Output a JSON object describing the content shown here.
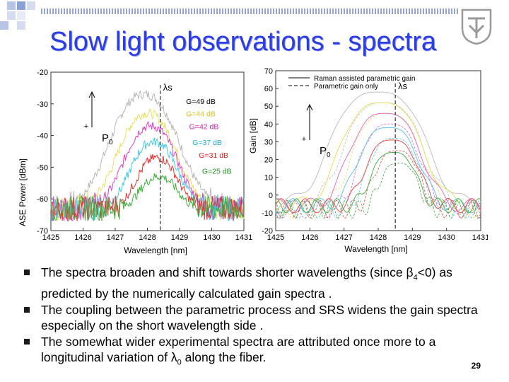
{
  "slide": {
    "title": "Slow light observations - spectra",
    "page_number": "29",
    "bullets": [
      {
        "pre": "The spectra broaden and shift towards shorter wavelengths (since β",
        "sub": "4",
        "post": "<0) as predicted by the numerically calculated gain spectra ."
      },
      {
        "pre": "The coupling between the parametric process and SRS widens the gain spectra especially on the short wavelength side .",
        "sub": "",
        "post": ""
      },
      {
        "pre": " The somewhat wider experimental spectra are attributed once more to a longitudinal variation of λ",
        "sub": "0",
        "post": " along the fiber."
      }
    ]
  },
  "chart_data": [
    {
      "type": "line",
      "xlabel": "Wavelength [nm]",
      "ylabel": "ASE Power [dBm]",
      "xticks": [
        "1425",
        "1426",
        "1427",
        "1428",
        "1429",
        "1430",
        "1431"
      ],
      "yticks": [
        "-20",
        "-30",
        "-40",
        "-50",
        "-60",
        "-70"
      ],
      "xlim": [
        1425,
        1431
      ],
      "ylim": [
        -70,
        -20
      ],
      "marker_label": "λs",
      "marker_x": 1428.4,
      "arrow_label": "P",
      "arrow_sub": "0",
      "series": [
        {
          "name": "G=49 dB",
          "color": "#b8b8b8",
          "center": 1427.9,
          "peak": -27,
          "width": 1.7
        },
        {
          "name": "G=44 dB",
          "color": "#e8e060",
          "center": 1428.0,
          "peak": -33,
          "width": 1.45
        },
        {
          "name": "G=42 dB",
          "color": "#e040c8",
          "center": 1428.1,
          "peak": -37,
          "width": 1.3
        },
        {
          "name": "G=37 dB",
          "color": "#40c8e8",
          "center": 1428.2,
          "peak": -42,
          "width": 1.15
        },
        {
          "name": "G=31 dB",
          "color": "#e83030",
          "center": 1428.3,
          "peak": -47,
          "width": 1.0
        },
        {
          "name": "G=25 dB",
          "color": "#40b040",
          "center": 1428.35,
          "peak": -53,
          "width": 0.9
        }
      ],
      "labels": [
        {
          "text": "G=49 dB",
          "color": "#000000"
        },
        {
          "text": "G=44 dB",
          "color": "#d8c020"
        },
        {
          "text": "G=42 dB",
          "color": "#d020b0"
        },
        {
          "text": "G=37 dB",
          "color": "#20a8e0"
        },
        {
          "text": "G=31 dB",
          "color": "#e02020"
        },
        {
          "text": "G=25 dB",
          "color": "#209020"
        }
      ],
      "noise_floor": -63
    },
    {
      "type": "line",
      "xlabel": "Wavelength [nm]",
      "ylabel": "Gain [dB]",
      "xticks": [
        "1425",
        "1426",
        "1427",
        "1428",
        "1429",
        "1430",
        "1431"
      ],
      "yticks": [
        "70",
        "60",
        "50",
        "40",
        "30",
        "20",
        "10",
        "0",
        "-10",
        "-20"
      ],
      "xlim": [
        1425,
        1431
      ],
      "ylim": [
        -20,
        70
      ],
      "marker_label": "λs",
      "marker_x": 1428.5,
      "arrow_label": "P",
      "arrow_sub": "0",
      "legend": [
        {
          "text": "Raman assisted parametric gain",
          "style": "solid"
        },
        {
          "text": "Parametric gain only",
          "style": "dashed"
        }
      ],
      "series": [
        {
          "color": "#c0c0c0",
          "center": 1428.0,
          "peak": 58,
          "width": 1.8
        },
        {
          "color": "#e8e060",
          "center": 1428.1,
          "peak": 52,
          "width": 1.55
        },
        {
          "color": "#e070d0",
          "center": 1428.2,
          "peak": 46,
          "width": 1.35
        },
        {
          "color": "#60c8e8",
          "center": 1428.3,
          "peak": 38,
          "width": 1.15
        },
        {
          "color": "#e85050",
          "center": 1428.4,
          "peak": 31,
          "width": 1.0
        },
        {
          "color": "#50b050",
          "center": 1428.45,
          "peak": 24,
          "width": 0.85
        }
      ]
    }
  ],
  "colors": {
    "title": "#2c3de3",
    "deco_squares": [
      "#8aa0d8",
      "#b8c4e6",
      "#d6dcef",
      "#e8ebf5"
    ]
  },
  "icons": {
    "logo": "university-emblem-icon",
    "bullet": "square-bullet-icon"
  }
}
